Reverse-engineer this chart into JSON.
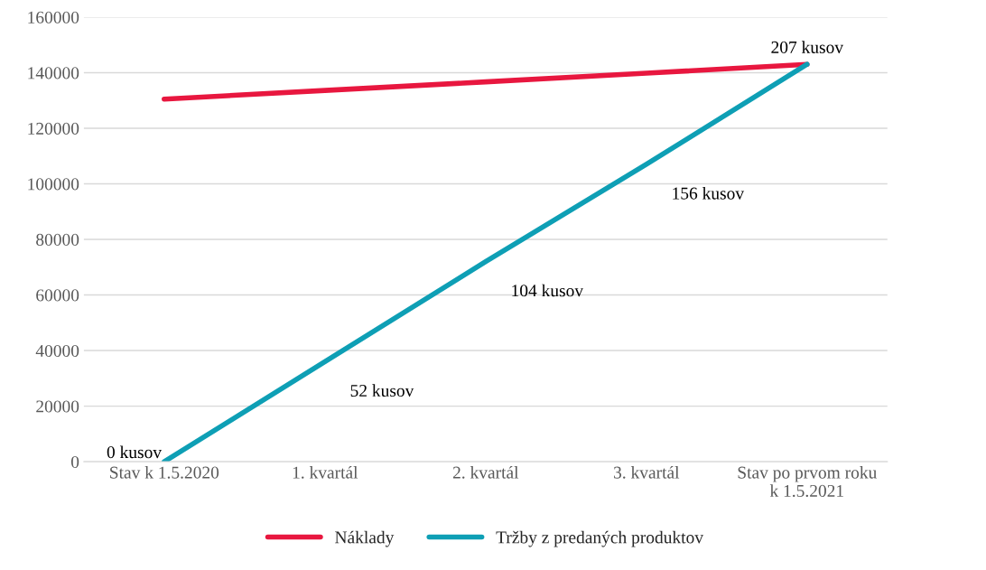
{
  "chart_data": {
    "type": "line",
    "categories": [
      "Stav k 1.5.2020",
      "1. kvartál",
      "2. kvartál",
      "3. kvartál",
      "Stav po prvom roku\nk 1.5.2021"
    ],
    "series": [
      {
        "name": "Náklady",
        "color": "#e8173f",
        "values": [
          130500,
          133600,
          136700,
          139800,
          143000
        ]
      },
      {
        "name": "Tržby z predaných produktov",
        "color": "#0e9fb5",
        "values": [
          0,
          36000,
          72000,
          107000,
          143000
        ]
      }
    ],
    "annotations": [
      {
        "text": "0 kusov",
        "x": "Stav k 1.5.2020",
        "y": 0
      },
      {
        "text": "52 kusov",
        "x": "1. kvartál",
        "y": 36000
      },
      {
        "text": "104 kusov",
        "x": "2. kvartál",
        "y": 72000
      },
      {
        "text": "156 kusov",
        "x": "3. kvartál",
        "y": 107000
      },
      {
        "text": "207 kusov",
        "x": "Stav po prvom roku\nk 1.5.2021",
        "y": 143000
      }
    ],
    "ylim": [
      0,
      160000
    ],
    "yticks": [
      0,
      20000,
      40000,
      60000,
      80000,
      100000,
      120000,
      140000,
      160000
    ],
    "grid": "y",
    "legend": "bottom",
    "marker": "none",
    "line_style": "solid"
  }
}
